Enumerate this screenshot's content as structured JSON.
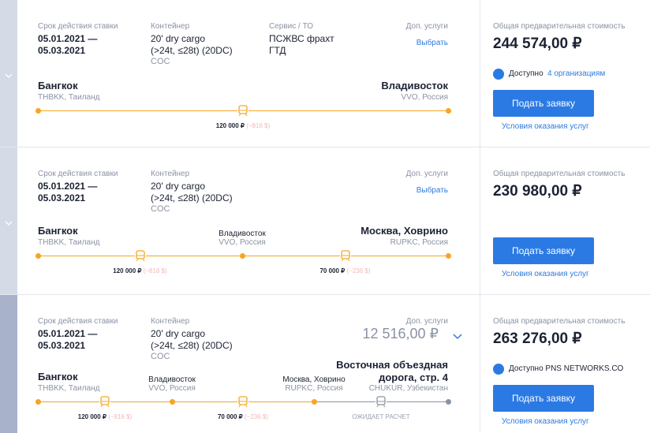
{
  "cards": [
    {
      "validity_label": "Срок действия ставки",
      "validity": [
        "05.01.2021 —",
        "05.03.2021"
      ],
      "container_label": "Контейнер",
      "container": [
        "20' dry cargo",
        "(>24t, ≤28t) (20DC)"
      ],
      "container_owner": "COC",
      "service_label": "Сервис / ТО",
      "service": [
        "ПСЖВС фрахт",
        "ГТД"
      ],
      "extras_label": "Доп. услуги",
      "extras_link": "Выбрать",
      "route": [
        {
          "city": "Бангкок",
          "code": "THBKK, Таиланд"
        },
        {
          "city": "Владивосток",
          "code": "VVO, Россия"
        }
      ],
      "legs": [
        {
          "price": "120 000 ₽",
          "alt": "(~816 $)"
        }
      ],
      "total_label": "Общая предварительная стоимость",
      "total": "244 574,00 ₽",
      "availability": "Доступно",
      "availability_link": "4 организациям",
      "button": "Подать заявку",
      "terms": "Условия оказания услуг"
    },
    {
      "validity_label": "Срок действия ставки",
      "validity": [
        "05.01.2021 —",
        "05.03.2021"
      ],
      "container_label": "Контейнер",
      "container": [
        "20' dry cargo",
        "(>24t, ≤28t) (20DC)"
      ],
      "container_owner": "COC",
      "extras_label": "Доп. услуги",
      "extras_link": "Выбрать",
      "route": [
        {
          "city": "Бангкок",
          "code": "THBKK, Таиланд"
        },
        {
          "city": "Владивосток",
          "code": "VVO, Россия"
        },
        {
          "city": "Москва, Ховрино",
          "code": "RUPKC, Россия"
        }
      ],
      "legs": [
        {
          "price": "120 000 ₽",
          "alt": "(~816 $)"
        },
        {
          "price": "70 000 ₽",
          "alt": "(~236 $)"
        }
      ],
      "total_label": "Общая предварительная стоимость",
      "total": "230 980,00 ₽",
      "button": "Подать заявку",
      "terms": "Условия оказания услуг"
    },
    {
      "validity_label": "Срок действия ставки",
      "validity": [
        "05.01.2021 —",
        "05.03.2021"
      ],
      "container_label": "Контейнер",
      "container": [
        "20' dry cargo",
        "(>24t, ≤28t) (20DC)"
      ],
      "container_owner": "COC",
      "extras_label": "Доп. услуги",
      "extras_value": "12 516,00 ₽",
      "route": [
        {
          "city": "Бангкок",
          "code": "THBKK, Таиланд"
        },
        {
          "city": "Владивосток",
          "code": "VVO, Россия"
        },
        {
          "city": "Москва, Ховрино",
          "code": "RUPKC, Россия"
        },
        {
          "city": "Восточная объездная дорога, стр. 4",
          "code": "CHUKUR, Узбекистан"
        }
      ],
      "legs": [
        {
          "price": "120 000 ₽",
          "alt": "(~816 $)"
        },
        {
          "price": "70 000 ₽",
          "alt": "(~236 $)"
        },
        {
          "status": "ОЖИДАЕТ РАСЧЕТ"
        }
      ],
      "total_label": "Общая предварительная стоимость",
      "total": "263 276,00 ₽",
      "availability": "Доступно PNS NETWORKS.CO",
      "button": "Подать заявку",
      "terms": "Условия оказания услуг"
    }
  ]
}
